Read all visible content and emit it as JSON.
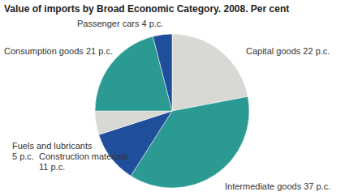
{
  "chart_data": {
    "type": "pie",
    "title": "Value of imports by Broad Economic Category. 2008. Per cent",
    "categories": [
      "Capital goods",
      "Intermediate goods",
      "Construction materials",
      "Fuels and lubricants",
      "Consumption goods",
      "Passenger cars"
    ],
    "values": [
      22,
      37,
      11,
      5,
      21,
      4
    ],
    "value_labels": [
      "22 p.c.",
      "37 p.c.",
      "11 p.c.",
      "5 p.c.",
      "21 p.c.",
      "4 p.c."
    ],
    "colors": [
      "#d8d8d4",
      "#2b9a92",
      "#1f4e9a",
      "#d8d8d4",
      "#2b9a92",
      "#1f4e9a"
    ],
    "data_labels": true
  }
}
